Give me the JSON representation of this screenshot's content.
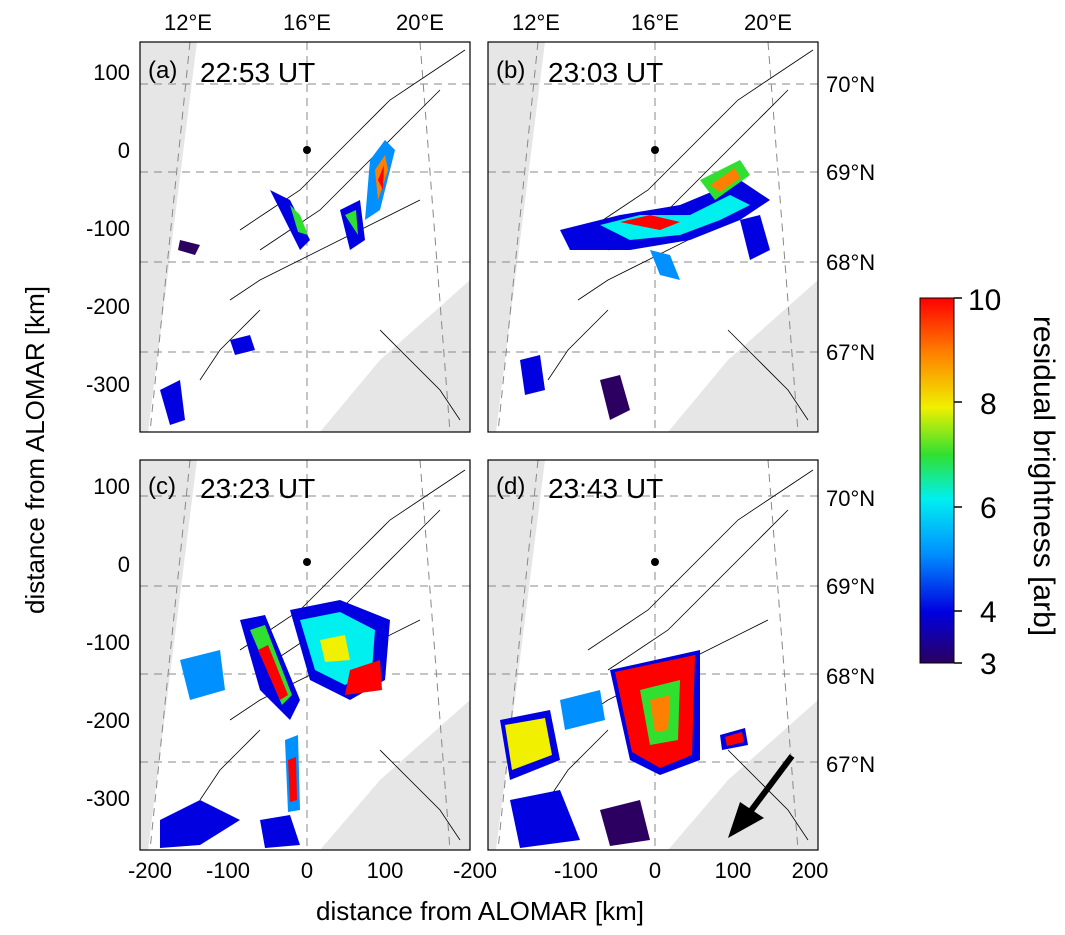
{
  "panels": [
    {
      "label": "(a)",
      "time": "22:53 UT"
    },
    {
      "label": "(b)",
      "time": "23:03 UT"
    },
    {
      "label": "(c)",
      "time": "23:23 UT"
    },
    {
      "label": "(d)",
      "time": "23:43 UT"
    }
  ],
  "axes": {
    "x_label": "distance from ALOMAR [km]",
    "y_label": "distance from ALOMAR [km]",
    "x_ticks": [
      "-200",
      "-100",
      "0",
      "100",
      "200"
    ],
    "x_tick_values": [
      -200,
      -100,
      0,
      100,
      200
    ],
    "y_ticks": [
      "100",
      "0",
      "-100",
      "-200",
      "-300"
    ],
    "y_tick_values": [
      100,
      0,
      -100,
      -200,
      -300
    ],
    "lon_ticks": [
      "12°E",
      "16°E",
      "20°E"
    ],
    "lat_ticks": [
      "70°N",
      "69°N",
      "68°N",
      "67°N"
    ]
  },
  "colorbar": {
    "label": "residual brightness [arb]",
    "ticks": [
      "10",
      "8",
      "6",
      "4",
      "3"
    ],
    "tick_values": [
      10,
      8,
      6,
      4,
      3
    ],
    "range": [
      3,
      10
    ],
    "colormap": "jet",
    "colors": [
      "#2b0060",
      "#0000e0",
      "#0090ff",
      "#00f0f0",
      "#30e030",
      "#f0f000",
      "#ff8000",
      "#ff0000"
    ]
  },
  "style": {
    "mask_color": "#e6e6e6",
    "grid_color": "#888888",
    "coast_color": "#000000",
    "arrow_color": "#000000"
  }
}
